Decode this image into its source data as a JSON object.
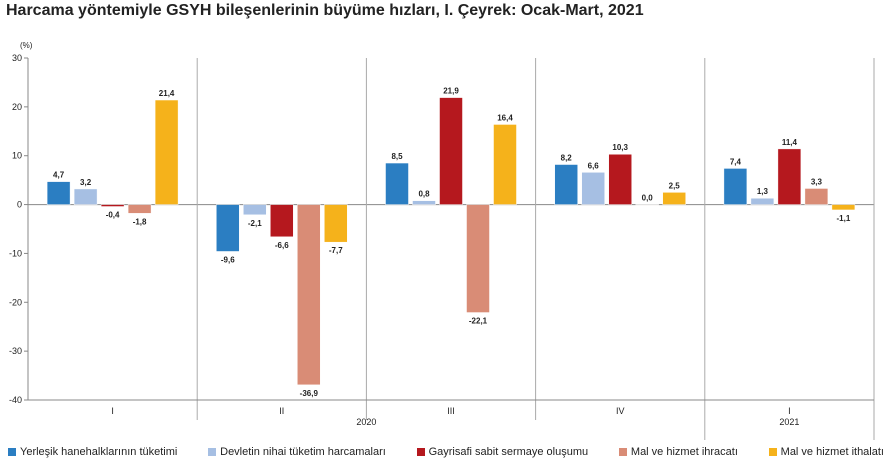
{
  "title": "Harcama yöntemiyle GSYH bileşenlerinin büyüme hızları, I. Çeyrek: Ocak-Mart, 2021",
  "chart_data": {
    "type": "bar",
    "title": "Harcama yöntemiyle GSYH bileşenlerinin büyüme hızları, I. Çeyrek: Ocak-Mart, 2021",
    "ylabel": "(%)",
    "ylim": [
      -40,
      30
    ],
    "yticks": [
      "30",
      "20",
      "10",
      "0",
      "-10",
      "-20",
      "-30",
      "-40"
    ],
    "ytick_values": [
      30,
      20,
      10,
      0,
      -10,
      -20,
      -30,
      -40
    ],
    "categories": [
      "I",
      "II",
      "III",
      "IV",
      "I"
    ],
    "year_labels": [
      {
        "label": "2020",
        "span": [
          0,
          3
        ]
      },
      {
        "label": "2021",
        "span": [
          4,
          4
        ]
      }
    ],
    "grid": false,
    "legend_position": "bottom",
    "series": [
      {
        "name": "Yerleşik hanehalklarının tüketimi",
        "color": "#2b7ec2",
        "values": [
          4.7,
          -9.6,
          8.5,
          8.2,
          7.4
        ],
        "labels": [
          "4,7",
          "-9,6",
          "8,5",
          "8,2",
          "7,4"
        ]
      },
      {
        "name": "Devletin nihai tüketim harcamaları",
        "color": "#a6bfe3",
        "values": [
          3.2,
          -2.1,
          0.8,
          6.6,
          1.3
        ],
        "labels": [
          "3,2",
          "-2,1",
          "0,8",
          "6,6",
          "1,3"
        ]
      },
      {
        "name": "Gayrisafi sabit sermaye oluşumu",
        "color": "#b5181e",
        "values": [
          -0.4,
          -6.6,
          21.9,
          10.3,
          11.4
        ],
        "labels": [
          "-0,4",
          "-6,6",
          "21,9",
          "10,3",
          "11,4"
        ]
      },
      {
        "name": "Mal ve hizmet ihracatı",
        "color": "#d98c76",
        "values": [
          -1.8,
          -36.9,
          -22.1,
          0.0,
          3.3
        ],
        "labels": [
          "-1,8",
          "-36,9",
          "-22,1",
          "0,0",
          "3,3"
        ]
      },
      {
        "name": "Mal ve hizmet ithalatı",
        "color": "#f5b21b",
        "values": [
          21.4,
          -7.7,
          16.4,
          2.5,
          -1.1
        ],
        "labels": [
          "21,4",
          "-7,7",
          "16,4",
          "2,5",
          "-1,1"
        ]
      }
    ]
  }
}
